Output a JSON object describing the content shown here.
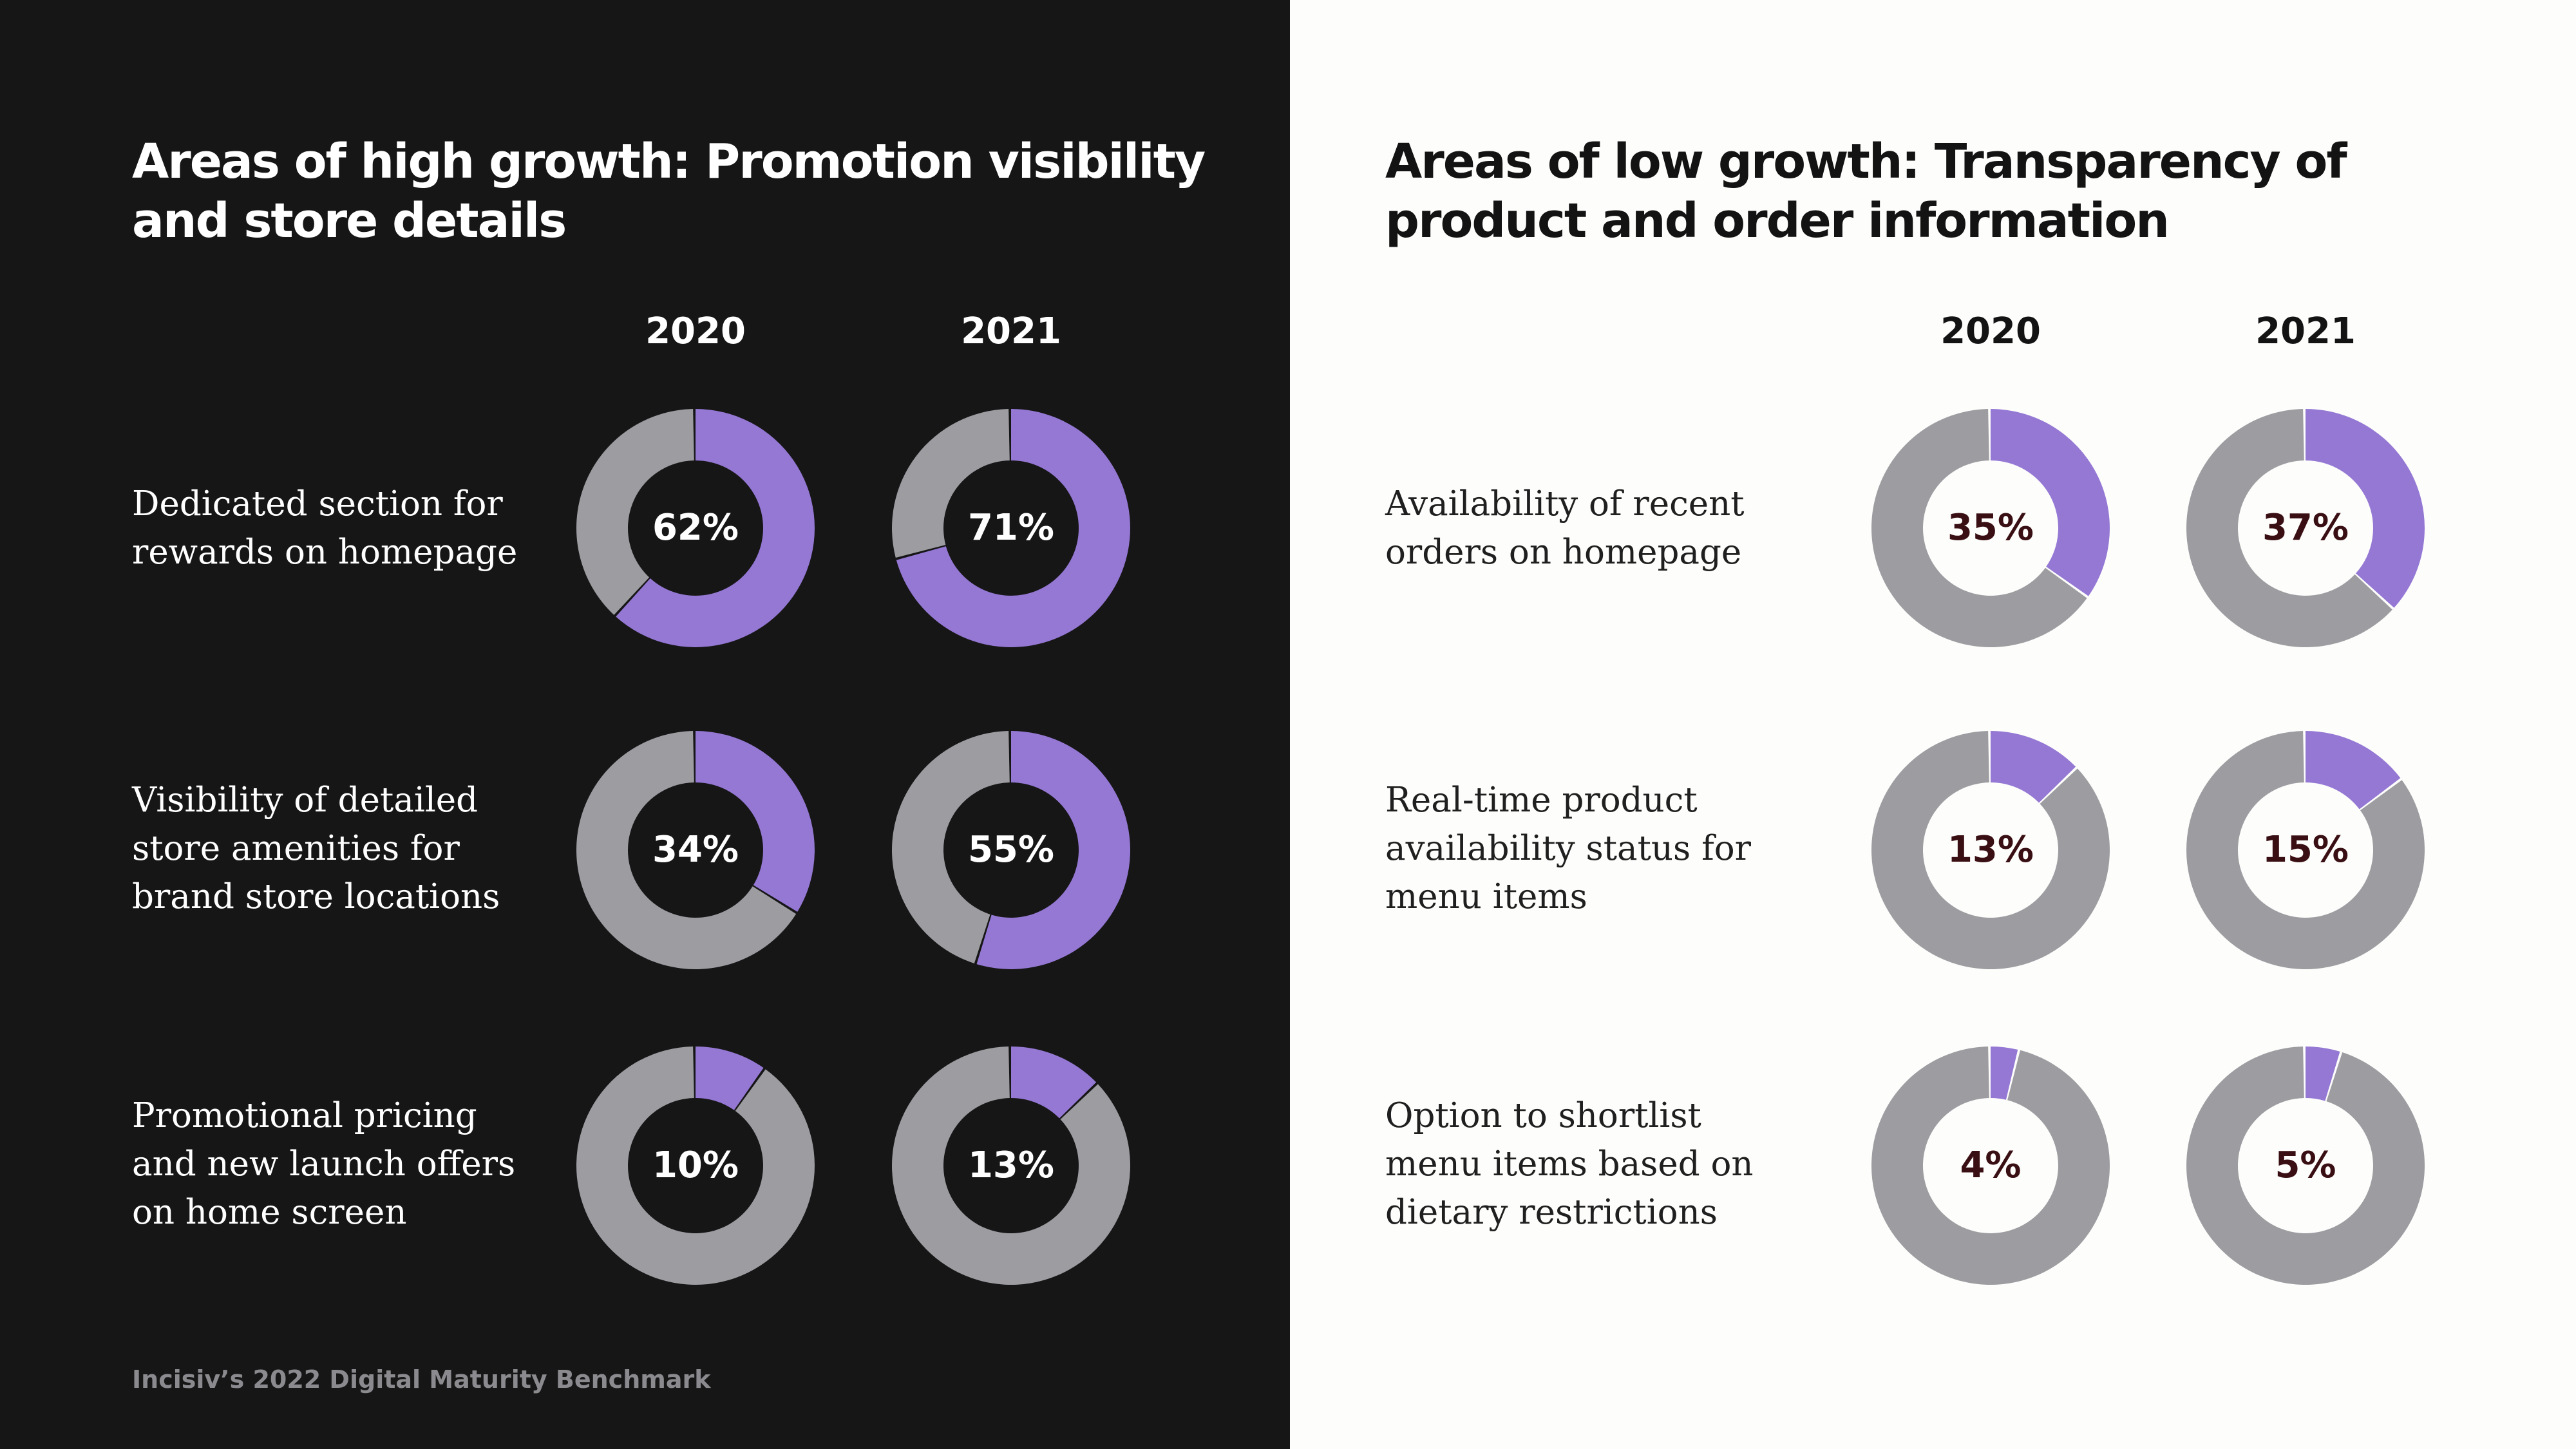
{
  "colors": {
    "highlight": "#9478d4",
    "remainder": "#9d9ca1",
    "dark_bg": "#171617",
    "light_bg": "#fdfdfb"
  },
  "footer": "Incisiv’s 2022 Digital Maturity Benchmark",
  "chart_data": [
    {
      "type": "donut",
      "title": "Areas of high growth: Promotion visibility and store details",
      "columns": [
        "2020",
        "2021"
      ],
      "rows": [
        {
          "label": "Dedicated section for rewards on homepage",
          "values": [
            62,
            71
          ],
          "value_labels": [
            "62%",
            "71%"
          ]
        },
        {
          "label": "Visibility of detailed store amenities for brand store locations",
          "values": [
            34,
            55
          ],
          "value_labels": [
            "34%",
            "55%"
          ]
        },
        {
          "label": "Promotional pricing and new launch offers on home screen",
          "values": [
            10,
            13
          ],
          "value_labels": [
            "10%",
            "13%"
          ]
        }
      ]
    },
    {
      "type": "donut",
      "title": "Areas of low growth: Transparency of product and order information",
      "columns": [
        "2020",
        "2021"
      ],
      "rows": [
        {
          "label": "Availability of recent orders on homepage",
          "values": [
            35,
            37
          ],
          "value_labels": [
            "35%",
            "37%"
          ]
        },
        {
          "label": "Real-time product availability status for menu items",
          "values": [
            13,
            15
          ],
          "value_labels": [
            "13%",
            "15%"
          ]
        },
        {
          "label": "Option to shortlist menu items based on dietary restrictions",
          "values": [
            4,
            5
          ],
          "value_labels": [
            "4%",
            "5%"
          ]
        }
      ]
    }
  ]
}
